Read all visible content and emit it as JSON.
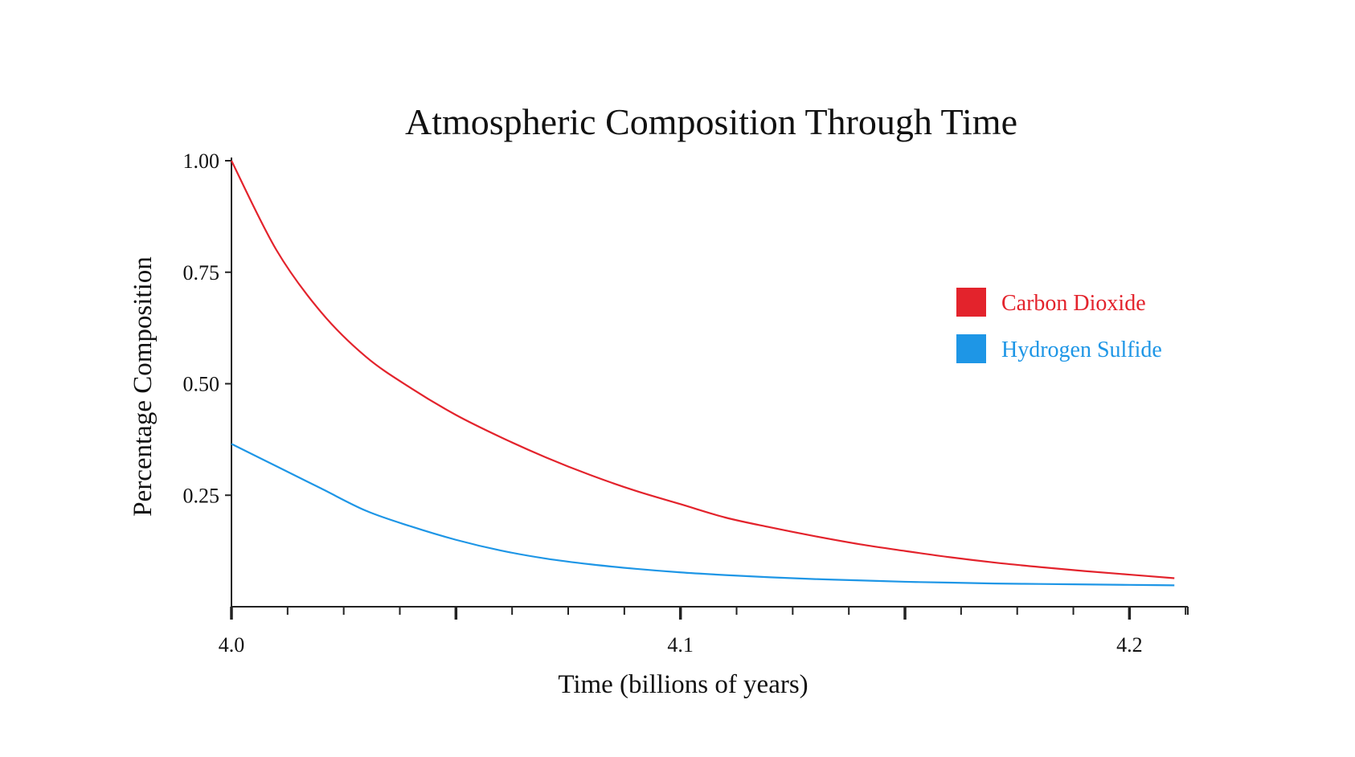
{
  "chart_data": {
    "type": "line",
    "title": "Atmospheric Composition Through Time",
    "xlabel": "Time (billions of years)",
    "ylabel": "Percentage Composition",
    "xlim": [
      4.0,
      4.213
    ],
    "ylim": [
      0.0,
      1.0
    ],
    "x_ticks": [
      {
        "value": 4.0,
        "label": "4.0"
      },
      {
        "value": 4.1,
        "label": "4.1"
      },
      {
        "value": 4.2,
        "label": "4.2"
      }
    ],
    "x_minor_step": 0.0125,
    "y_ticks": [
      {
        "value": 1.0,
        "label": "1.00"
      },
      {
        "value": 0.75,
        "label": "0.75"
      },
      {
        "value": 0.5,
        "label": "0.50"
      },
      {
        "value": 0.25,
        "label": "0.25"
      }
    ],
    "grid": false,
    "legend_position": "right",
    "series": [
      {
        "name": "Carbon Dioxide",
        "color": "#e3232c",
        "x": [
          4.0,
          4.01,
          4.02,
          4.03,
          4.04,
          4.05,
          4.06,
          4.07,
          4.08,
          4.09,
          4.1,
          4.11,
          4.12,
          4.13,
          4.14,
          4.15,
          4.16,
          4.17,
          4.18,
          4.19,
          4.2,
          4.21
        ],
        "y": [
          1.0,
          0.8,
          0.66,
          0.56,
          0.49,
          0.43,
          0.38,
          0.335,
          0.295,
          0.26,
          0.23,
          0.2,
          0.178,
          0.158,
          0.14,
          0.125,
          0.111,
          0.099,
          0.089,
          0.08,
          0.072,
          0.064
        ]
      },
      {
        "name": "Hydrogen Sulfide",
        "color": "#1e96e6",
        "x": [
          4.0,
          4.01,
          4.02,
          4.03,
          4.04,
          4.05,
          4.06,
          4.07,
          4.08,
          4.09,
          4.1,
          4.11,
          4.12,
          4.13,
          4.14,
          4.15,
          4.16,
          4.17,
          4.18,
          4.19,
          4.2,
          4.21
        ],
        "y": [
          0.365,
          0.315,
          0.265,
          0.215,
          0.18,
          0.15,
          0.126,
          0.108,
          0.095,
          0.085,
          0.077,
          0.071,
          0.066,
          0.062,
          0.059,
          0.056,
          0.054,
          0.052,
          0.051,
          0.05,
          0.049,
          0.048
        ]
      }
    ]
  }
}
